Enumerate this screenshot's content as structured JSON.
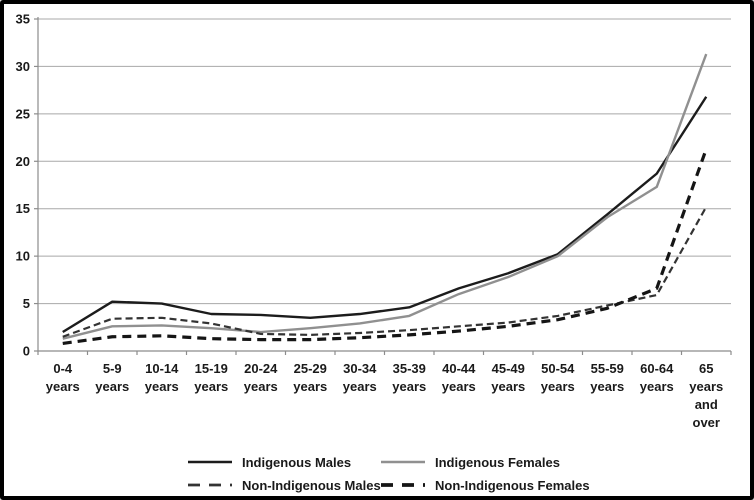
{
  "chart_data": {
    "type": "line",
    "title": "",
    "xlabel": "",
    "ylabel": "",
    "ylim": [
      0,
      35
    ],
    "ytick_step": 5,
    "yticks": [
      0,
      5,
      10,
      15,
      20,
      25,
      30,
      35
    ],
    "grid": "horizontal",
    "legend_position": "bottom",
    "categories": [
      "0-4 years",
      "5-9 years",
      "10-14 years",
      "15-19 years",
      "20-24 years",
      "25-29 years",
      "30-34 years",
      "35-39 years",
      "40-44 years",
      "45-49 years",
      "50-54 years",
      "55-59 years",
      "60-64 years",
      "65 years and over"
    ],
    "categories_lines": [
      [
        "0-4",
        "years"
      ],
      [
        "5-9",
        "years"
      ],
      [
        "10-14",
        "years"
      ],
      [
        "15-19",
        "years"
      ],
      [
        "20-24",
        "years"
      ],
      [
        "25-29",
        "years"
      ],
      [
        "30-34",
        "years"
      ],
      [
        "35-39",
        "years"
      ],
      [
        "40-44",
        "years"
      ],
      [
        "45-49",
        "years"
      ],
      [
        "50-54",
        "years"
      ],
      [
        "55-59",
        "years"
      ],
      [
        "60-64",
        "years"
      ],
      [
        "65",
        "years",
        "and",
        "over"
      ]
    ],
    "series": [
      {
        "name": "Indigenous Males",
        "style": "solid",
        "color": "#1c1c1c",
        "line_width": 2.4,
        "values": [
          2.0,
          5.2,
          5.0,
          3.9,
          3.8,
          3.5,
          3.9,
          4.6,
          6.6,
          8.2,
          10.2,
          14.4,
          18.7,
          26.8
        ]
      },
      {
        "name": "Indigenous Females",
        "style": "solid",
        "color": "#909090",
        "line_width": 2.4,
        "values": [
          1.3,
          2.6,
          2.7,
          2.4,
          2.0,
          2.4,
          2.9,
          3.7,
          6.0,
          7.8,
          10.0,
          14.1,
          17.3,
          31.3
        ]
      },
      {
        "name": "Non-Indigenous Males",
        "style": "dashed",
        "color": "#333333",
        "line_width": 2.2,
        "dash": "7 4",
        "values": [
          1.5,
          3.4,
          3.5,
          2.9,
          1.8,
          1.7,
          1.9,
          2.2,
          2.6,
          3.0,
          3.7,
          4.8,
          5.9,
          15.2
        ]
      },
      {
        "name": "Non-Indigenous Females",
        "style": "dashed",
        "color": "#151515",
        "line_width": 3.2,
        "dash": "9 6",
        "values": [
          0.8,
          1.5,
          1.6,
          1.3,
          1.2,
          1.2,
          1.4,
          1.7,
          2.1,
          2.6,
          3.3,
          4.5,
          6.6,
          21.3
        ]
      }
    ]
  },
  "colors": {
    "background": "#ffffff",
    "frame_border": "#000000",
    "gridline": "#a8a8a8",
    "axis": "#8c8c8c",
    "text": "#1a1a1a"
  }
}
